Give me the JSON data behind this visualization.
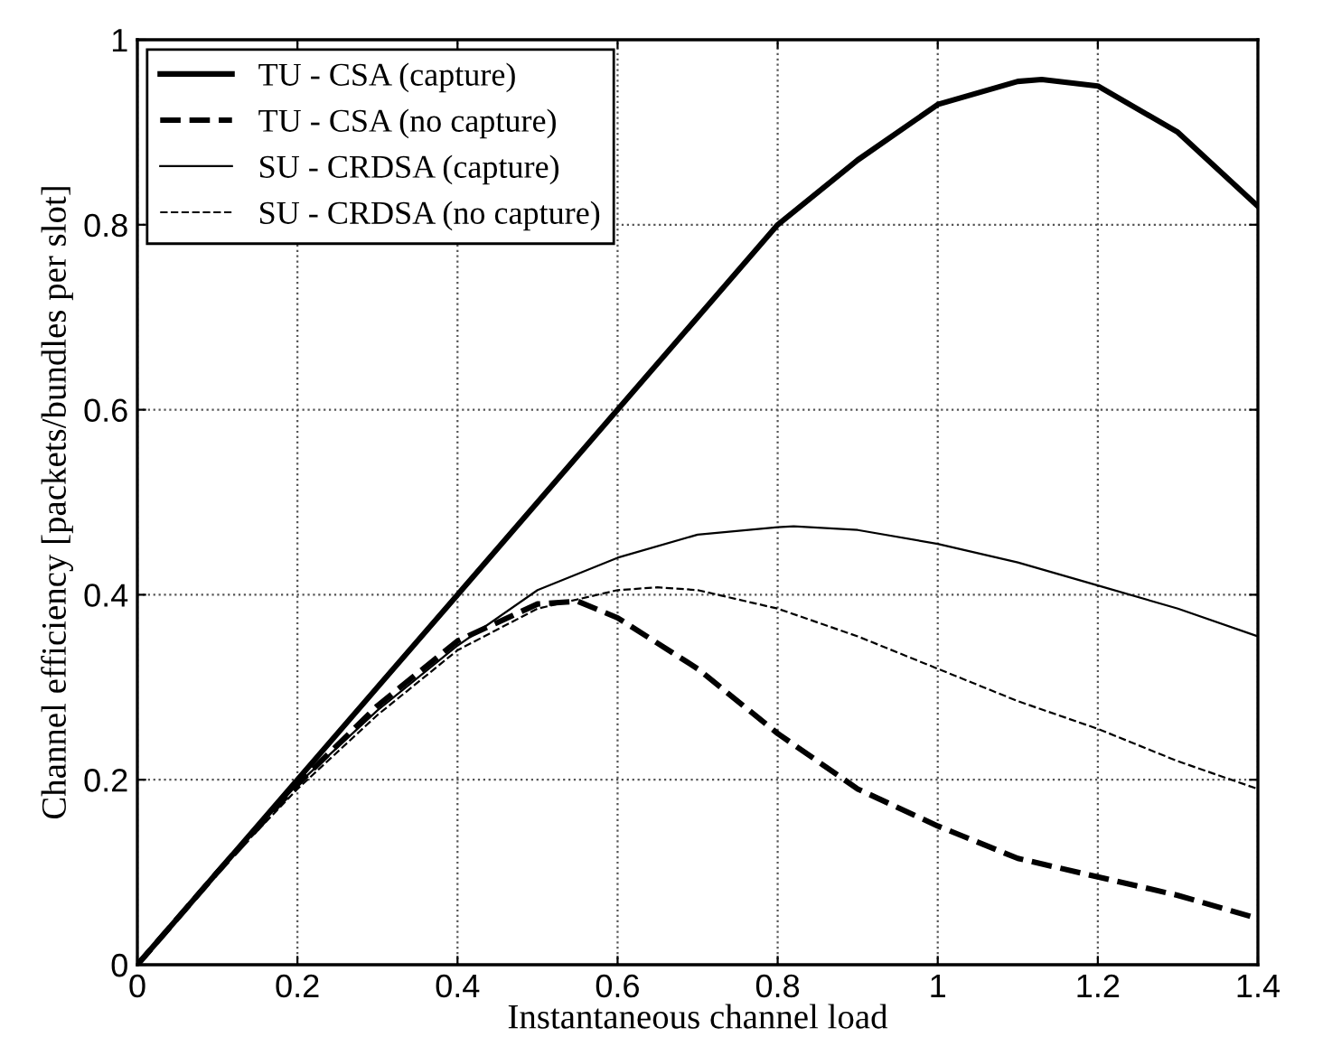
{
  "chart_data": {
    "type": "line",
    "xlabel": "Instantaneous channel load",
    "ylabel": "Channel efficiency [packets/bundles per slot]",
    "xlim": [
      0,
      1.4
    ],
    "ylim": [
      0,
      1
    ],
    "xticks": [
      0,
      0.2,
      0.4,
      0.6,
      0.8,
      1,
      1.2,
      1.4
    ],
    "yticks": [
      0,
      0.2,
      0.4,
      0.6,
      0.8,
      1
    ],
    "grid": true,
    "legend": "top left",
    "marker": "none",
    "series": [
      {
        "name": "TU - CSA (capture)",
        "color": "#000000",
        "line_style": "solid",
        "x": [
          0,
          0.1,
          0.2,
          0.3,
          0.4,
          0.5,
          0.6,
          0.7,
          0.8,
          0.9,
          1.0,
          1.1,
          1.13,
          1.2,
          1.3,
          1.4
        ],
        "values": [
          0,
          0.1,
          0.2,
          0.3,
          0.4,
          0.5,
          0.6,
          0.7,
          0.8,
          0.87,
          0.93,
          0.955,
          0.957,
          0.95,
          0.9,
          0.82
        ]
      },
      {
        "name": "TU - CSA (no capture)",
        "color": "#000000",
        "line_style": "dashed",
        "x": [
          0,
          0.1,
          0.2,
          0.3,
          0.4,
          0.5,
          0.55,
          0.6,
          0.7,
          0.8,
          0.9,
          1.0,
          1.1,
          1.2,
          1.3,
          1.4
        ],
        "values": [
          0,
          0.1,
          0.195,
          0.28,
          0.35,
          0.39,
          0.393,
          0.375,
          0.32,
          0.25,
          0.19,
          0.15,
          0.115,
          0.095,
          0.075,
          0.05
        ]
      },
      {
        "name": "SU - CRDSA (capture)",
        "color": "#000000",
        "line_style": "solid",
        "x": [
          0,
          0.1,
          0.2,
          0.3,
          0.4,
          0.5,
          0.6,
          0.7,
          0.8,
          0.82,
          0.9,
          1.0,
          1.1,
          1.2,
          1.3,
          1.4
        ],
        "values": [
          0,
          0.1,
          0.195,
          0.275,
          0.345,
          0.405,
          0.44,
          0.465,
          0.473,
          0.474,
          0.47,
          0.455,
          0.435,
          0.41,
          0.385,
          0.355
        ]
      },
      {
        "name": "SU - CRDSA (no capture)",
        "color": "#000000",
        "line_style": "dashed",
        "x": [
          0,
          0.1,
          0.2,
          0.3,
          0.4,
          0.5,
          0.6,
          0.65,
          0.7,
          0.8,
          0.9,
          1.0,
          1.1,
          1.2,
          1.3,
          1.4
        ],
        "values": [
          0,
          0.1,
          0.19,
          0.27,
          0.34,
          0.385,
          0.405,
          0.408,
          0.405,
          0.385,
          0.355,
          0.32,
          0.285,
          0.255,
          0.22,
          0.19
        ]
      }
    ]
  }
}
